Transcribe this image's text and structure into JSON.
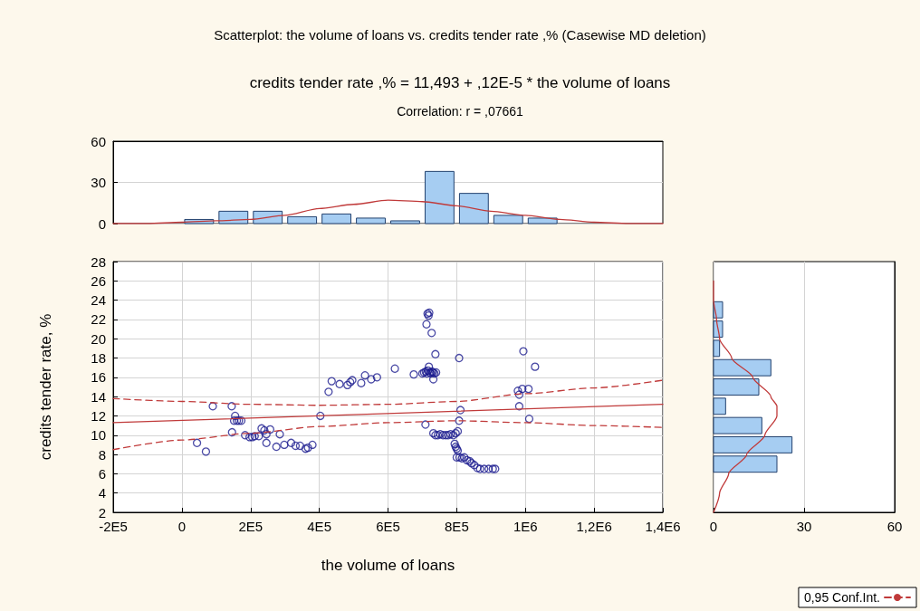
{
  "chart_data": [
    {
      "type": "histogram",
      "title": "Scatterplot: the volume of loans vs. credits tender rate ,% (Casewise MD deletion)",
      "subtitle": "credits tender rate ,% = 11,493 + ,12E-5 * the volume of loans",
      "annotations": [
        "Correlation: r = ,07661"
      ],
      "bins": [
        0,
        100000,
        200000,
        300000,
        400000,
        500000,
        600000,
        700000,
        800000,
        900000,
        1000000,
        1100000
      ],
      "xlim": [
        -200000,
        1400000
      ],
      "ylim": [
        0,
        60
      ],
      "yticks": [
        0,
        30,
        60
      ],
      "tick_labels": "y",
      "grid": "y",
      "series": [
        {
          "color": "#a6cdf2",
          "values": [
            3,
            9,
            9,
            5,
            7,
            4,
            2,
            38,
            22,
            6,
            4
          ]
        },
        {
          "type": "line",
          "color": "#c03a3a",
          "x": [
            -200000,
            -100000,
            0,
            100000,
            200000,
            300000,
            400000,
            500000,
            600000,
            700000,
            800000,
            900000,
            1000000,
            1100000,
            1200000,
            1300000,
            1400000
          ],
          "values": [
            0,
            0,
            1,
            2,
            3,
            6,
            11,
            14,
            17,
            16,
            13,
            9,
            6,
            3,
            1,
            0,
            0
          ]
        }
      ]
    },
    {
      "type": "scatter",
      "xlabel": "the volume of loans",
      "ylabel": "credits tender rate, %",
      "xlim": [
        -200000,
        1400000
      ],
      "xticks": [
        {
          "value": -200000,
          "label": "-2E5"
        },
        0,
        {
          "value": 200000,
          "label": "2E5"
        },
        {
          "value": 400000,
          "label": "4E5"
        },
        {
          "value": 600000,
          "label": "6E5"
        },
        {
          "value": 800000,
          "label": "8E5"
        },
        {
          "value": 1000000,
          "label": "1E6"
        },
        {
          "value": 1200000,
          "label": "1,2E6"
        },
        {
          "value": 1400000,
          "label": "1,4E6"
        }
      ],
      "ylim": [
        2,
        28
      ],
      "yticks": [
        2,
        4,
        6,
        8,
        10,
        12,
        14,
        16,
        18,
        20,
        22,
        24,
        26,
        28
      ],
      "grid": true,
      "legend": "bottom right",
      "series": [
        {
          "color": "#1c1c8f",
          "marker": "circle",
          "x": [
            44000,
            70000,
            90000,
            145000,
            146000,
            155000,
            152000,
            160000,
            166000,
            173000,
            184000,
            197000,
            205000,
            212000,
            224000,
            232000,
            240000,
            246000,
            246000,
            257000,
            275000,
            285000,
            298000,
            318000,
            331000,
            344000,
            360000,
            367000,
            380000,
            403000,
            427000,
            436000,
            459000,
            482000,
            490000,
            496000,
            522000,
            533000,
            551000,
            568000,
            620000,
            675000,
            700000,
            705000,
            710000,
            713000,
            716000,
            719000,
            722000,
            725000,
            728000,
            731000,
            735000,
            740000,
            732000,
            738000,
            715000,
            718000,
            720000,
            712000,
            727000,
            709000,
            732000,
            738000,
            745000,
            752000,
            760000,
            768000,
            775000,
            782000,
            790000,
            797000,
            803000,
            807000,
            811000,
            807000,
            794000,
            797000,
            800000,
            803000,
            800000,
            808000,
            815000,
            822000,
            830000,
            838000,
            843000,
            851000,
            860000,
            868000,
            880000,
            893000,
            905000,
            912000,
            978000,
            982000,
            982000,
            991000,
            1009000,
            994000,
            1028000,
            1011000
          ],
          "values": [
            9.2,
            8.3,
            13.0,
            13.0,
            10.3,
            12.0,
            11.5,
            11.5,
            11.5,
            11.5,
            10.0,
            9.8,
            9.8,
            9.9,
            9.9,
            10.7,
            10.5,
            10.1,
            9.2,
            10.6,
            8.8,
            10.1,
            9.0,
            9.2,
            8.9,
            8.9,
            8.6,
            8.7,
            9.0,
            12.0,
            14.5,
            15.6,
            15.3,
            15.2,
            15.5,
            15.7,
            15.4,
            16.2,
            15.8,
            16.0,
            16.9,
            16.3,
            16.4,
            16.5,
            16.6,
            16.4,
            16.7,
            17.1,
            16.5,
            16.4,
            16.6,
            16.5,
            16.4,
            16.5,
            15.8,
            18.4,
            22.6,
            22.4,
            22.7,
            21.5,
            20.6,
            11.1,
            10.2,
            10.0,
            10.0,
            10.1,
            10.0,
            10.0,
            10.0,
            10.1,
            10.0,
            10.2,
            10.4,
            18.0,
            12.6,
            11.5,
            9.1,
            8.8,
            8.6,
            8.4,
            7.7,
            7.7,
            7.6,
            7.7,
            7.4,
            7.3,
            7.1,
            6.9,
            6.6,
            6.5,
            6.5,
            6.5,
            6.5,
            6.5,
            14.6,
            14.2,
            13.0,
            14.8,
            14.8,
            18.7,
            17.1,
            11.7
          ]
        },
        {
          "type": "line",
          "color": "#c03a3a",
          "x": [
            -200000,
            1400000
          ],
          "values": [
            11.3,
            13.2
          ]
        },
        {
          "type": "line",
          "name": "0,95 Conf.Int.",
          "color": "#c03a3a",
          "line_style": "dashed",
          "x": [
            -200000,
            0,
            200000,
            400000,
            600000,
            800000,
            1000000,
            1200000,
            1400000
          ],
          "values": [
            13.8,
            13.5,
            13.2,
            13.1,
            13.2,
            13.5,
            14.3,
            14.9,
            15.7
          ]
        },
        {
          "type": "line",
          "color": "#c03a3a",
          "line_style": "dashed",
          "x": [
            -200000,
            0,
            200000,
            400000,
            600000,
            800000,
            1000000,
            1200000,
            1400000
          ],
          "values": [
            8.5,
            9.5,
            10.2,
            10.9,
            11.3,
            11.5,
            11.3,
            11.0,
            10.8
          ]
        }
      ]
    },
    {
      "type": "histogram",
      "orientation": "horizontal",
      "bins": [
        6,
        8,
        10,
        12,
        14,
        16,
        18,
        20,
        22,
        24
      ],
      "xlim": [
        0,
        60
      ],
      "xticks": [
        0,
        30,
        60
      ],
      "ylim": [
        2,
        28
      ],
      "tick_labels": "x",
      "grid": "x",
      "series": [
        {
          "color": "#a6cdf2",
          "values": [
            21,
            26,
            16,
            4,
            15,
            19,
            2,
            3,
            3
          ]
        },
        {
          "type": "line",
          "color": "#c03a3a",
          "x": [
            2,
            4,
            6,
            8,
            10,
            12,
            13,
            14,
            16,
            18,
            20,
            22,
            24,
            26
          ],
          "values": [
            0,
            2,
            5,
            11,
            17,
            21,
            21,
            19,
            13,
            6,
            2,
            1,
            0,
            0
          ]
        }
      ]
    }
  ]
}
